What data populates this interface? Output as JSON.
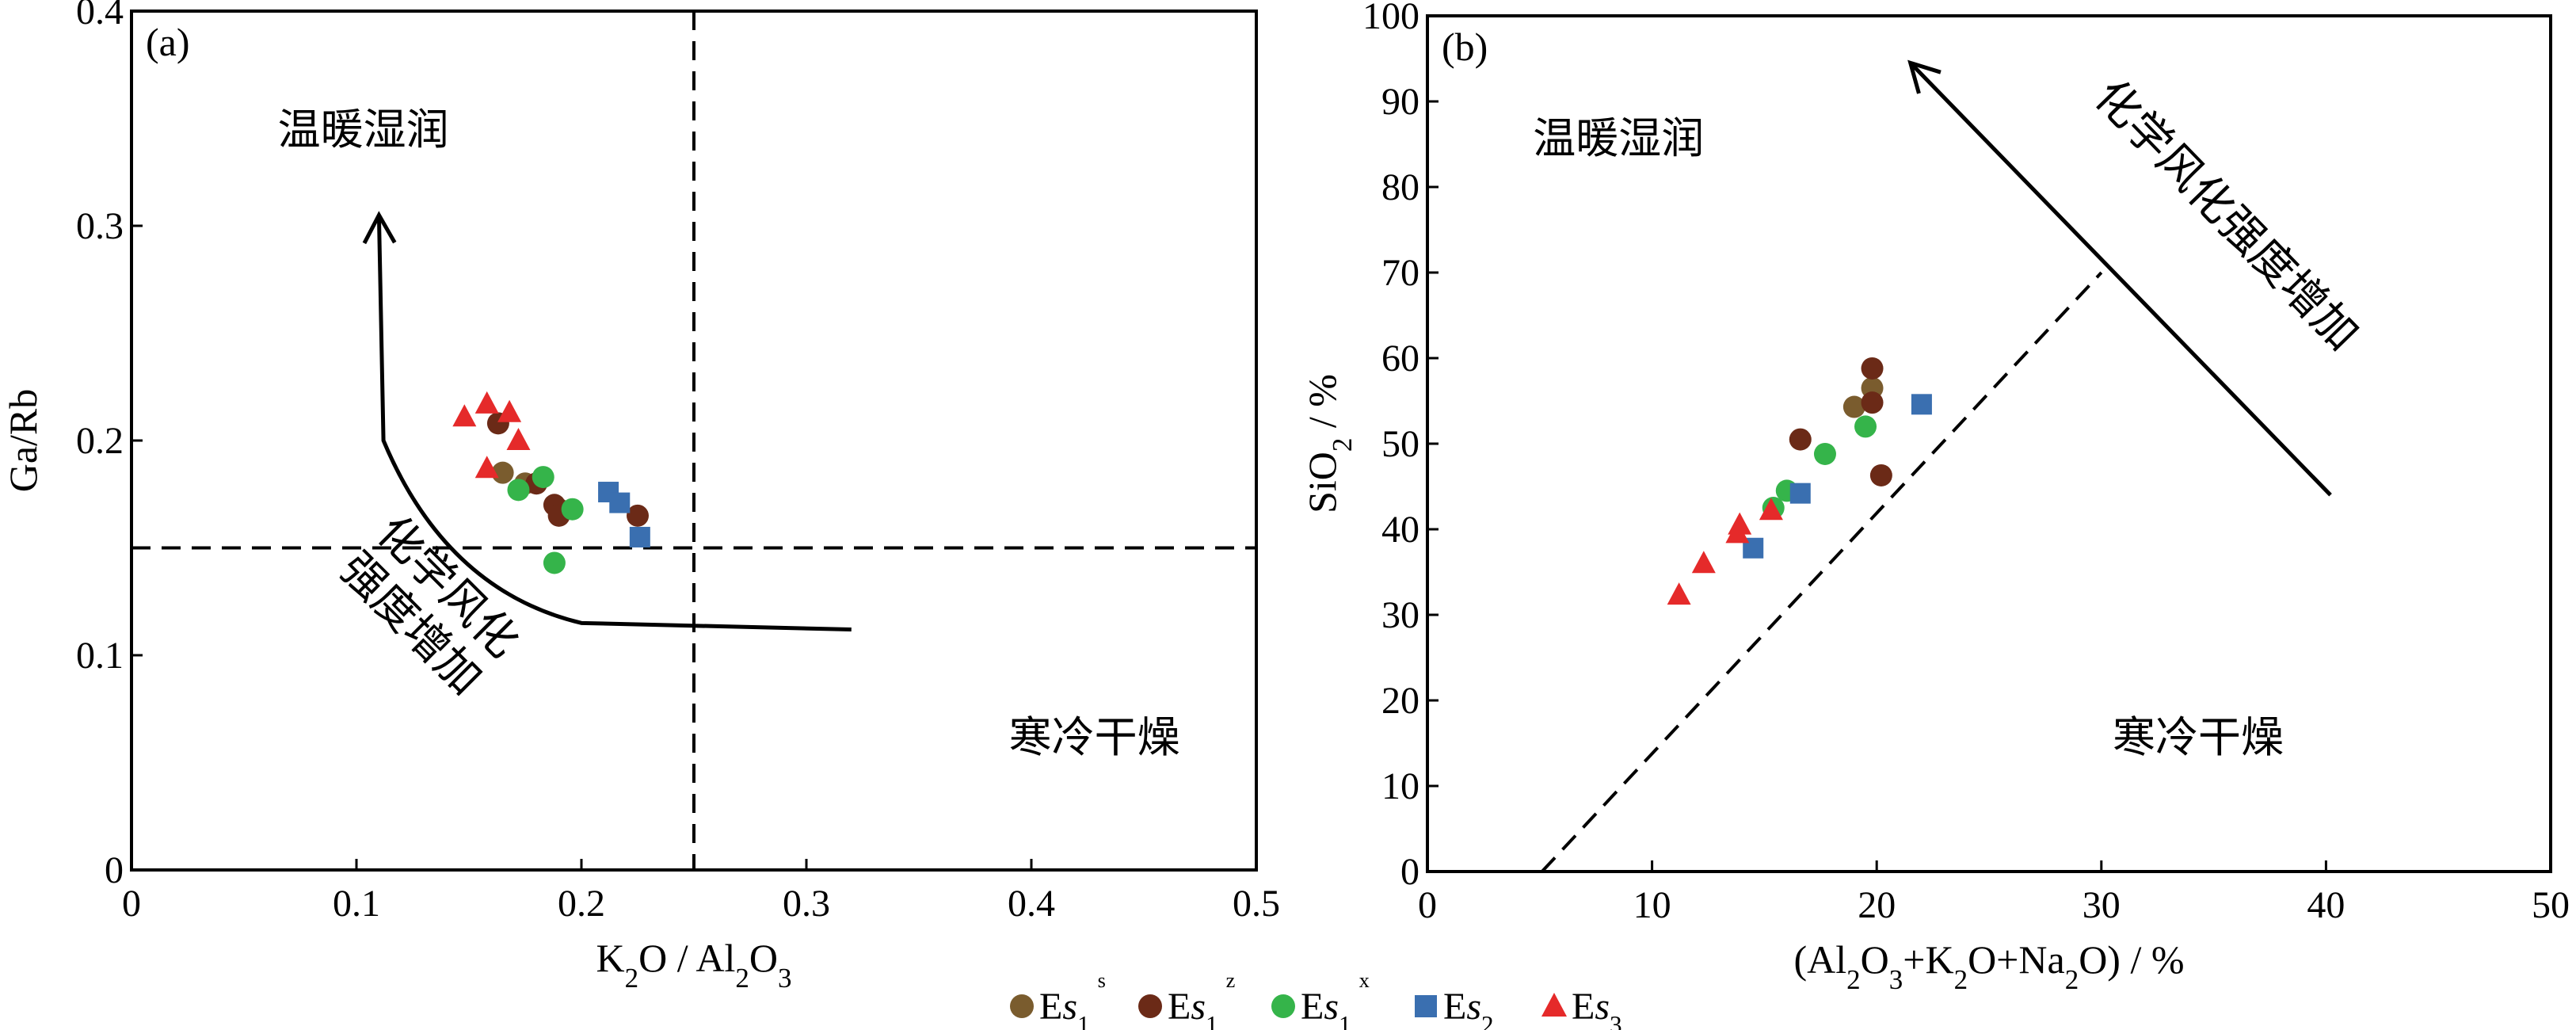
{
  "colors": {
    "Es1s": "#7a5c2e",
    "Es1z": "#6b2a17",
    "Es1x": "#35b44a",
    "Es2": "#3a6fb0",
    "Es3": "#e52a2a"
  },
  "legend": {
    "entries": [
      {
        "key": "Es1s",
        "marker": "circle",
        "base": "Es",
        "sub": "1",
        "sup": "s"
      },
      {
        "key": "Es1z",
        "marker": "circle",
        "base": "Es",
        "sub": "1",
        "sup": "z"
      },
      {
        "key": "Es1x",
        "marker": "circle",
        "base": "Es",
        "sub": "1",
        "sup": "x"
      },
      {
        "key": "Es2",
        "marker": "square",
        "base": "Es",
        "sub": "2",
        "sup": ""
      },
      {
        "key": "Es3",
        "marker": "triangle",
        "base": "Es",
        "sub": "3",
        "sup": ""
      }
    ]
  },
  "chart_data": [
    {
      "panel_label": "(a)",
      "type": "scatter",
      "xlabel": "K₂O / Al₂O₃",
      "ylabel": "Ga/Rb",
      "xlim": [
        0,
        0.5
      ],
      "ylim": [
        0,
        0.4
      ],
      "xticks": [
        0,
        0.1,
        0.2,
        0.3,
        0.4,
        0.5
      ],
      "xtick_labels": [
        "0",
        "0.1",
        "0.2",
        "0.3",
        "0.4",
        "0.5"
      ],
      "yticks": [
        0,
        0.1,
        0.2,
        0.3,
        0.4
      ],
      "ytick_labels": [
        "0",
        "0.1",
        "0.2",
        "0.3",
        "0.4"
      ],
      "grid": false,
      "region_labels": [
        {
          "text": "温暖湿润",
          "x": 0.065,
          "y": 0.338
        },
        {
          "text": "寒冷干燥",
          "x": 0.39,
          "y": 0.055
        }
      ],
      "reference_lines": [
        {
          "orientation": "vertical",
          "value": 0.25,
          "style": "dashed"
        },
        {
          "orientation": "horizontal",
          "value": 0.15,
          "style": "dashed"
        }
      ],
      "trend_arrow": {
        "label": [
          "化学风化",
          "强度增加"
        ],
        "path": [
          [
            0.32,
            0.112
          ],
          [
            0.2,
            0.115
          ],
          [
            0.14,
            0.13
          ],
          [
            0.112,
            0.2
          ],
          [
            0.11,
            0.305
          ]
        ]
      },
      "series": [
        {
          "name": "Es1s",
          "points": [
            [
              0.165,
              0.185
            ],
            [
              0.175,
              0.18
            ],
            [
              0.19,
              0.168
            ]
          ]
        },
        {
          "name": "Es1z",
          "points": [
            [
              0.163,
              0.208
            ],
            [
              0.18,
              0.18
            ],
            [
              0.188,
              0.17
            ],
            [
              0.19,
              0.165
            ],
            [
              0.225,
              0.165
            ]
          ]
        },
        {
          "name": "Es1x",
          "points": [
            [
              0.172,
              0.177
            ],
            [
              0.183,
              0.183
            ],
            [
              0.196,
              0.168
            ],
            [
              0.188,
              0.143
            ]
          ]
        },
        {
          "name": "Es2",
          "points": [
            [
              0.212,
              0.176
            ],
            [
              0.217,
              0.171
            ],
            [
              0.226,
              0.155
            ]
          ]
        },
        {
          "name": "Es3",
          "points": [
            [
              0.148,
              0.211
            ],
            [
              0.158,
              0.217
            ],
            [
              0.168,
              0.213
            ],
            [
              0.172,
              0.2
            ],
            [
              0.158,
              0.187
            ]
          ]
        }
      ]
    },
    {
      "panel_label": "(b)",
      "type": "scatter",
      "xlabel": "(Al₂O₃+K₂O+Na₂O) / %",
      "ylabel": "SiO₂ / %",
      "xlim": [
        0,
        50
      ],
      "ylim": [
        0,
        100
      ],
      "xticks": [
        0,
        10,
        20,
        30,
        40,
        50
      ],
      "xtick_labels": [
        "0",
        "10",
        "20",
        "30",
        "40",
        "50"
      ],
      "yticks": [
        0,
        10,
        20,
        30,
        40,
        50,
        60,
        70,
        80,
        90,
        100
      ],
      "ytick_labels": [
        "0",
        "10",
        "20",
        "30",
        "40",
        "50",
        "60",
        "70",
        "80",
        "90",
        "100"
      ],
      "grid": false,
      "region_labels": [
        {
          "text": "温暖湿润",
          "x": 4.7,
          "y": 84
        },
        {
          "text": "寒冷干燥",
          "x": 30.5,
          "y": 14
        }
      ],
      "reference_lines": [
        {
          "orientation": "sloped",
          "from": [
            5.1,
            0
          ],
          "to": [
            30,
            70
          ],
          "style": "dashed"
        }
      ],
      "trend_arrow": {
        "label": [
          "化学风化强度增加"
        ],
        "path": [
          [
            40.2,
            44
          ],
          [
            21.5,
            94.5
          ]
        ]
      },
      "series": [
        {
          "name": "Es1s",
          "points": [
            [
              19.8,
              56.5
            ],
            [
              19.0,
              54.3
            ]
          ]
        },
        {
          "name": "Es1z",
          "points": [
            [
              19.8,
              58.8
            ],
            [
              19.8,
              54.8
            ],
            [
              16.6,
              50.5
            ],
            [
              20.2,
              46.3
            ]
          ]
        },
        {
          "name": "Es1x",
          "points": [
            [
              19.5,
              52
            ],
            [
              17.7,
              48.8
            ],
            [
              16.0,
              44.5
            ],
            [
              15.4,
              42.5
            ]
          ]
        },
        {
          "name": "Es2",
          "points": [
            [
              22.0,
              54.6
            ],
            [
              16.6,
              44.2
            ],
            [
              14.5,
              37.8
            ]
          ]
        },
        {
          "name": "Es3",
          "points": [
            [
              11.2,
              32.3
            ],
            [
              12.3,
              36
            ],
            [
              13.9,
              40.5
            ],
            [
              13.8,
              39.5
            ],
            [
              15.3,
              42.2
            ]
          ]
        }
      ]
    }
  ]
}
